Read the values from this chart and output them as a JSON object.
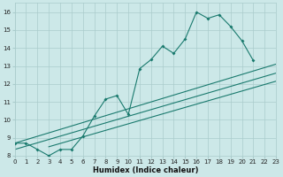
{
  "xlabel": "Humidex (Indice chaleur)",
  "bg_color": "#cce8e8",
  "grid_color": "#aacccc",
  "line_color": "#1a7a6e",
  "xlim": [
    0,
    23
  ],
  "ylim": [
    8,
    16.5
  ],
  "xticks": [
    0,
    1,
    2,
    3,
    4,
    5,
    6,
    7,
    8,
    9,
    10,
    11,
    12,
    13,
    14,
    15,
    16,
    17,
    18,
    19,
    20,
    21,
    22,
    23
  ],
  "yticks": [
    8,
    9,
    10,
    11,
    12,
    13,
    14,
    15,
    16
  ],
  "curve_x": [
    0,
    1,
    2,
    3,
    4,
    5,
    6,
    7,
    8,
    9,
    10,
    11,
    12,
    13,
    14,
    15,
    16,
    17,
    18,
    19,
    20,
    21
  ],
  "curve_y": [
    8.7,
    8.7,
    8.35,
    8.0,
    8.35,
    8.35,
    9.1,
    10.2,
    11.15,
    11.35,
    10.3,
    12.85,
    13.35,
    14.1,
    13.7,
    14.5,
    16.0,
    15.65,
    15.85,
    15.2,
    14.4,
    13.3
  ],
  "s1x": [
    0,
    23
  ],
  "s1y": [
    8.7,
    13.1
  ],
  "s2x": [
    0,
    23
  ],
  "s2y": [
    8.35,
    12.6
  ],
  "s3x": [
    3,
    23
  ],
  "s3y": [
    8.5,
    12.15
  ]
}
